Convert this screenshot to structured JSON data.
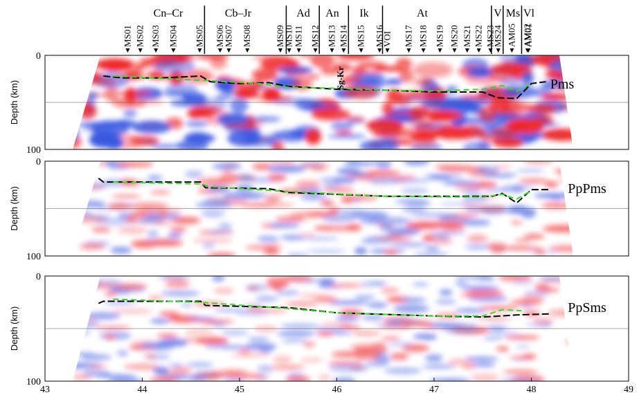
{
  "stations": {
    "names": [
      "MS01",
      "MS02",
      "MS03",
      "MS04",
      "MS05",
      "MS06",
      "MS07",
      "MS08",
      "MS09",
      "MS10",
      "MS11",
      "MS12",
      "MS13",
      "MS14",
      "MS15",
      "MS16",
      "VOI",
      "MS17",
      "MS18",
      "MS19",
      "MS20",
      "MS21",
      "MS22",
      "MS23",
      "MS24",
      "AM05",
      "AM02",
      "AM01"
    ],
    "x": [
      43.85,
      43.98,
      44.14,
      44.32,
      44.59,
      44.8,
      44.89,
      45.08,
      45.42,
      45.51,
      45.61,
      45.78,
      45.95,
      46.07,
      46.25,
      46.44,
      46.52,
      46.74,
      46.89,
      47.06,
      47.21,
      47.34,
      47.46,
      47.58,
      47.66,
      47.8,
      47.96,
      47.97
    ]
  },
  "regions": {
    "labels": [
      "Cn–Cr",
      "Cb–Jr",
      "Ad",
      "An",
      "Ik",
      "At",
      "V",
      "Ms",
      "Vl"
    ],
    "bounds": [
      44.64,
      45.48,
      45.82,
      46.12,
      46.47,
      47.59,
      47.71,
      47.9
    ],
    "extra_label": "Sg-Kr"
  },
  "chart_data": [
    {
      "type": "line",
      "label": "Pms",
      "ylabel": "Depth (km)",
      "xlim": [
        43,
        49
      ],
      "ylim": [
        0,
        100
      ],
      "yticks": [
        0,
        100
      ],
      "hline": 50,
      "series": [
        {
          "color": "#000000",
          "dash": true,
          "x": [
            43.6,
            43.8,
            44.2,
            44.6,
            44.7,
            45.0,
            45.3,
            45.5,
            46.0,
            46.5,
            47.0,
            47.5,
            47.65,
            47.85,
            48.0,
            48.15
          ],
          "values": [
            22,
            24,
            24,
            22,
            28,
            30,
            29,
            33,
            36,
            37,
            39,
            39,
            45,
            46,
            30,
            28
          ]
        },
        {
          "color": "#33dd22",
          "dash": true,
          "x": [
            43.7,
            44.3,
            44.7,
            45.2,
            45.5,
            46.0,
            46.5,
            47.0,
            47.5,
            47.7,
            47.85,
            48.0
          ],
          "values": [
            22,
            25,
            27,
            30,
            34,
            35,
            37,
            38,
            36,
            32,
            38,
            30
          ]
        }
      ]
    },
    {
      "type": "line",
      "label": "PpPms",
      "ylabel": "Depth (km)",
      "xlim": [
        43,
        49
      ],
      "ylim": [
        0,
        100
      ],
      "yticks": [
        0,
        100
      ],
      "hline": 50,
      "series": [
        {
          "color": "#000000",
          "dash": true,
          "x": [
            43.55,
            43.6,
            44.6,
            44.65,
            45.3,
            45.5,
            46.5,
            47.6,
            47.7,
            47.85,
            48.0,
            48.2
          ],
          "values": [
            18,
            22,
            22,
            28,
            29,
            33,
            37,
            37,
            34,
            44,
            30,
            30
          ]
        },
        {
          "color": "#33dd22",
          "dash": true,
          "x": [
            43.7,
            44.6,
            44.7,
            45.5,
            46.5,
            47.5,
            47.7,
            47.85,
            48.0
          ],
          "values": [
            22,
            24,
            27,
            32,
            37,
            38,
            35,
            40,
            31
          ]
        }
      ]
    },
    {
      "type": "line",
      "label": "PpSms",
      "ylabel": "Depth (km)",
      "xlim": [
        43,
        49
      ],
      "ylim": [
        0,
        100
      ],
      "yticks": [
        0,
        100
      ],
      "hline": 50,
      "xticks": [
        43,
        44,
        45,
        46,
        47,
        48,
        49
      ],
      "series": [
        {
          "color": "#000000",
          "dash": true,
          "x": [
            43.55,
            43.6,
            44.6,
            44.65,
            45.5,
            46.0,
            47.0,
            47.5,
            47.85,
            48.2
          ],
          "values": [
            26,
            24,
            24,
            28,
            30,
            35,
            38,
            39,
            37,
            36
          ]
        },
        {
          "color": "#33dd22",
          "dash": true,
          "x": [
            43.7,
            44.6,
            45.5,
            46.0,
            47.0,
            47.5,
            47.7,
            47.9
          ],
          "values": [
            22,
            25,
            31,
            35,
            38,
            38,
            32,
            33
          ]
        }
      ]
    }
  ]
}
